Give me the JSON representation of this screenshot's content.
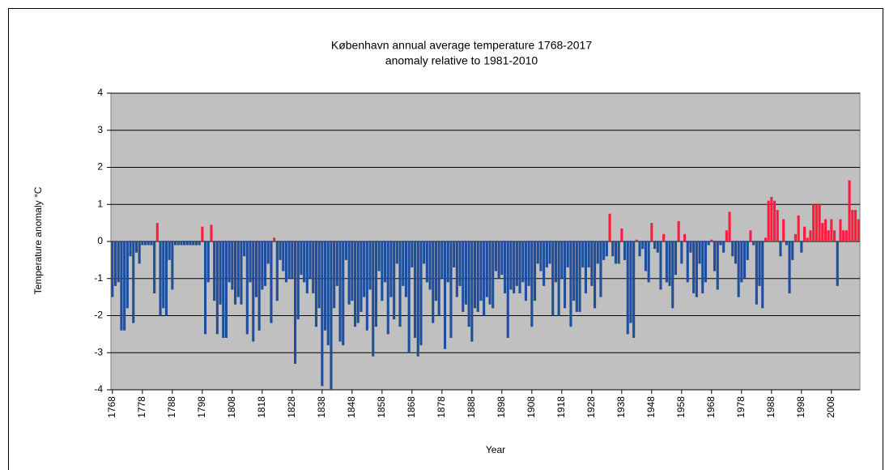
{
  "chart_data": {
    "type": "bar",
    "title": [
      "København  annual average  temperature 1768-2017",
      "anomaly relative to 1981-2010"
    ],
    "xlabel": "Year",
    "ylabel": "Temperature anomaly °C",
    "positive_color": "#ff1a40",
    "negative_color": "#1f4e9c",
    "plot_background": "#c0c0c0",
    "grid": true,
    "xlim": [
      1767.5,
      2017.5
    ],
    "ylim": [
      -4,
      4
    ],
    "yticks": [
      -4,
      -3,
      -2,
      -1,
      0,
      1,
      2,
      3,
      4
    ],
    "xticks": [
      1768,
      1778,
      1788,
      1798,
      1808,
      1818,
      1828,
      1838,
      1848,
      1858,
      1868,
      1878,
      1888,
      1898,
      1908,
      1918,
      1928,
      1938,
      1948,
      1958,
      1968,
      1978,
      1988,
      1998,
      2008
    ],
    "x": [
      1768,
      1769,
      1770,
      1771,
      1772,
      1773,
      1774,
      1775,
      1776,
      1777,
      1778,
      1779,
      1780,
      1781,
      1782,
      1783,
      1784,
      1785,
      1786,
      1787,
      1788,
      1789,
      1790,
      1791,
      1792,
      1793,
      1794,
      1795,
      1796,
      1797,
      1798,
      1799,
      1800,
      1801,
      1802,
      1803,
      1804,
      1805,
      1806,
      1807,
      1808,
      1809,
      1810,
      1811,
      1812,
      1813,
      1814,
      1815,
      1816,
      1817,
      1818,
      1819,
      1820,
      1821,
      1822,
      1823,
      1824,
      1825,
      1826,
      1827,
      1828,
      1829,
      1830,
      1831,
      1832,
      1833,
      1834,
      1835,
      1836,
      1837,
      1838,
      1839,
      1840,
      1841,
      1842,
      1843,
      1844,
      1845,
      1846,
      1847,
      1848,
      1849,
      1850,
      1851,
      1852,
      1853,
      1854,
      1855,
      1856,
      1857,
      1858,
      1859,
      1860,
      1861,
      1862,
      1863,
      1864,
      1865,
      1866,
      1867,
      1868,
      1869,
      1870,
      1871,
      1872,
      1873,
      1874,
      1875,
      1876,
      1877,
      1878,
      1879,
      1880,
      1881,
      1882,
      1883,
      1884,
      1885,
      1886,
      1887,
      1888,
      1889,
      1890,
      1891,
      1892,
      1893,
      1894,
      1895,
      1896,
      1897,
      1898,
      1899,
      1900,
      1901,
      1902,
      1903,
      1904,
      1905,
      1906,
      1907,
      1908,
      1909,
      1910,
      1911,
      1912,
      1913,
      1914,
      1915,
      1916,
      1917,
      1918,
      1919,
      1920,
      1921,
      1922,
      1923,
      1924,
      1925,
      1926,
      1927,
      1928,
      1929,
      1930,
      1931,
      1932,
      1933,
      1934,
      1935,
      1936,
      1937,
      1938,
      1939,
      1940,
      1941,
      1942,
      1943,
      1944,
      1945,
      1946,
      1947,
      1948,
      1949,
      1950,
      1951,
      1952,
      1953,
      1954,
      1955,
      1956,
      1957,
      1958,
      1959,
      1960,
      1961,
      1962,
      1963,
      1964,
      1965,
      1966,
      1967,
      1968,
      1969,
      1970,
      1971,
      1972,
      1973,
      1974,
      1975,
      1976,
      1977,
      1978,
      1979,
      1980,
      1981,
      1982,
      1983,
      1984,
      1985,
      1986,
      1987,
      1988,
      1989,
      1990,
      1991,
      1992,
      1993,
      1994,
      1995,
      1996,
      1997,
      1998,
      1999,
      2000,
      2001,
      2002,
      2003,
      2004,
      2005,
      2006,
      2007,
      2008,
      2009,
      2010,
      2011,
      2012,
      2013,
      2014,
      2015,
      2016,
      2017
    ],
    "values": [
      -1.5,
      -1.2,
      -1.1,
      -2.4,
      -2.4,
      -1.8,
      -0.4,
      -2.2,
      -0.3,
      -0.6,
      -0.1,
      -0.1,
      -0.1,
      -0.1,
      -1.4,
      0.5,
      -2.0,
      -1.8,
      -2.0,
      -0.5,
      -1.3,
      -0.1,
      -0.1,
      -0.1,
      -0.1,
      -0.1,
      -0.1,
      -0.1,
      -0.1,
      -0.1,
      0.4,
      -2.5,
      -1.1,
      0.45,
      -1.6,
      -2.5,
      -1.7,
      -2.6,
      -2.6,
      -1.1,
      -1.3,
      -1.7,
      -1.5,
      -1.7,
      -0.4,
      -2.5,
      -1.1,
      -2.7,
      -1.5,
      -2.4,
      -1.3,
      -1.2,
      -0.6,
      -2.2,
      0.1,
      -1.6,
      -0.5,
      -0.8,
      -1.1,
      -1.0,
      -1.0,
      -3.3,
      -2.1,
      -0.9,
      -1.1,
      -1.4,
      -1.0,
      -1.4,
      -2.3,
      -1.8,
      -3.9,
      -2.4,
      -2.8,
      -4.0,
      -1.8,
      -1.2,
      -2.7,
      -2.8,
      -0.5,
      -1.7,
      -1.6,
      -2.3,
      -2.2,
      -1.9,
      -1.5,
      -2.4,
      -1.3,
      -3.1,
      -2.3,
      -0.8,
      -1.6,
      -1.1,
      -2.5,
      -1.5,
      -2.1,
      -0.6,
      -2.3,
      -1.2,
      -1.5,
      -3.0,
      -0.7,
      -2.6,
      -3.1,
      -2.8,
      -0.6,
      -1.1,
      -1.3,
      -2.2,
      -1.6,
      -2.0,
      -1.0,
      -2.9,
      -1.1,
      -2.6,
      -0.7,
      -1.5,
      -1.2,
      -1.9,
      -1.7,
      -2.3,
      -2.7,
      -1.8,
      -1.9,
      -1.6,
      -2.0,
      -1.5,
      -1.7,
      -1.8,
      -0.8,
      -1.0,
      -0.9,
      -1.4,
      -2.6,
      -1.3,
      -1.4,
      -1.2,
      -1.4,
      -1.1,
      -1.6,
      -1.2,
      -2.3,
      -1.6,
      -0.6,
      -0.8,
      -1.2,
      -0.7,
      -0.6,
      -2.0,
      -1.1,
      -2.0,
      -1.0,
      -1.8,
      -0.7,
      -2.3,
      -1.6,
      -1.9,
      -1.9,
      -0.7,
      -1.4,
      -0.7,
      -1.2,
      -1.8,
      -0.6,
      -1.5,
      -0.5,
      -0.4,
      0.75,
      -0.4,
      -0.6,
      -0.6,
      0.35,
      -0.5,
      -2.5,
      -2.2,
      -2.6,
      0.05,
      -0.4,
      -0.2,
      -0.8,
      -1.1,
      0.5,
      -0.2,
      -0.3,
      -1.3,
      0.2,
      -1.1,
      -1.2,
      -1.8,
      -0.9,
      0.55,
      -0.6,
      0.2,
      -1.1,
      -0.3,
      -1.4,
      -1.5,
      -0.6,
      -1.4,
      -1.1,
      -0.1,
      0.05,
      -0.8,
      -1.3,
      -0.1,
      -0.3,
      0.3,
      0.8,
      -0.4,
      -0.6,
      -1.5,
      -1.1,
      -1.0,
      -0.5,
      0.3,
      -0.1,
      -1.7,
      -1.2,
      -1.8,
      0.1,
      1.1,
      1.2,
      1.1,
      0.85,
      -0.4,
      0.6,
      -0.1,
      -1.4,
      -0.5,
      0.2,
      0.7,
      -0.3,
      0.4,
      0.1,
      0.3,
      1.0,
      1.0,
      1.0,
      0.5,
      0.6,
      0.3,
      0.6,
      0.3,
      -1.2,
      0.6,
      0.3,
      0.3,
      1.65,
      0.85,
      0.85,
      0.6
    ]
  }
}
